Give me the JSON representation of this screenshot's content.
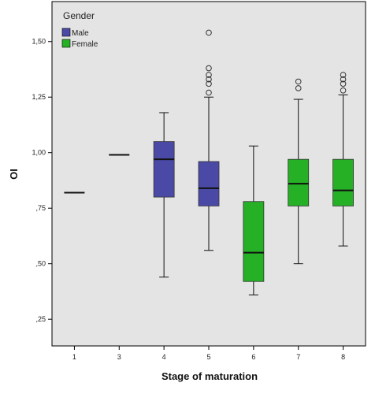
{
  "chart_data": {
    "type": "boxplot",
    "title": "",
    "xlabel": "Stage of maturation",
    "ylabel": "OI",
    "ylim": [
      0.13,
      1.68
    ],
    "yticks": [
      0.25,
      0.5,
      0.75,
      1.0,
      1.25,
      1.5
    ],
    "ytick_labels": [
      ",25",
      ",50",
      ",75",
      "1,00",
      "1,25",
      "1,50"
    ],
    "categories": [
      "1",
      "3",
      "4",
      "5",
      "6",
      "7",
      "8"
    ],
    "grid": false,
    "legend": {
      "title": "Gender",
      "placement": "top-left",
      "entries": [
        {
          "name": "Male",
          "color": "#4a4aa6"
        },
        {
          "name": "Female",
          "color": "#26b026"
        }
      ]
    },
    "boxes": [
      {
        "category": "1",
        "gender": "Male",
        "median": 0.82,
        "q1": 0.82,
        "q3": 0.82,
        "whisker_low": 0.82,
        "whisker_high": 0.82,
        "outliers": []
      },
      {
        "category": "3",
        "gender": "Male",
        "median": 0.99,
        "q1": 0.99,
        "q3": 0.99,
        "whisker_low": 0.99,
        "whisker_high": 0.99,
        "outliers": []
      },
      {
        "category": "4",
        "gender": "Male",
        "median": 0.97,
        "q1": 0.8,
        "q3": 1.05,
        "whisker_low": 0.44,
        "whisker_high": 1.18,
        "outliers": []
      },
      {
        "category": "5",
        "gender": "Male",
        "median": 0.84,
        "q1": 0.76,
        "q3": 0.96,
        "whisker_low": 0.56,
        "whisker_high": 1.25,
        "outliers": [
          1.27,
          1.31,
          1.33,
          1.35,
          1.38,
          1.54
        ]
      },
      {
        "category": "6",
        "gender": "Female",
        "median": 0.55,
        "q1": 0.42,
        "q3": 0.78,
        "whisker_low": 0.36,
        "whisker_high": 1.03,
        "outliers": []
      },
      {
        "category": "7",
        "gender": "Female",
        "median": 0.86,
        "q1": 0.76,
        "q3": 0.97,
        "whisker_low": 0.5,
        "whisker_high": 1.24,
        "outliers": [
          1.29,
          1.32
        ]
      },
      {
        "category": "8",
        "gender": "Female",
        "median": 0.83,
        "q1": 0.76,
        "q3": 0.97,
        "whisker_low": 0.58,
        "whisker_high": 1.26,
        "outliers": [
          1.28,
          1.31,
          1.33,
          1.35
        ]
      }
    ]
  },
  "colors": {
    "plot_background": "#e4e4e4",
    "male": "#4a4aa6",
    "female": "#26b026",
    "line": "#111111"
  }
}
